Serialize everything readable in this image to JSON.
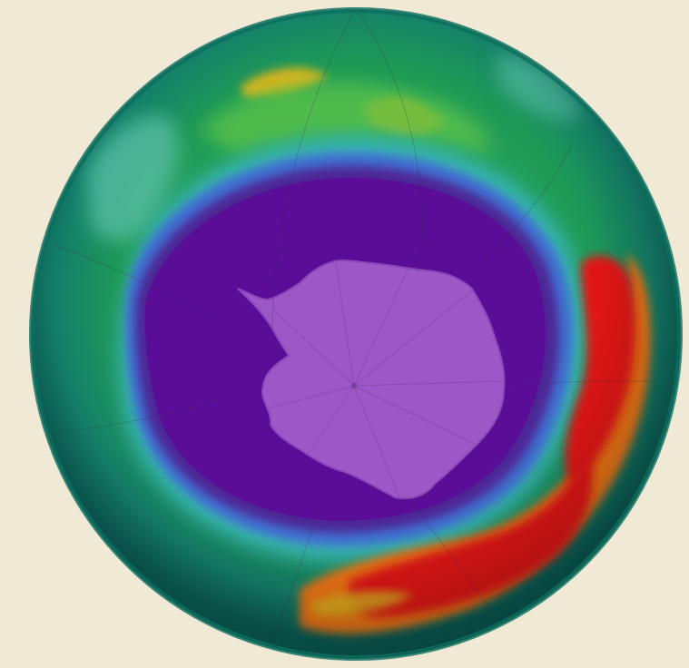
{
  "image": {
    "subject": "ozone-hole-globe",
    "colors": {
      "background": "#efe9d6",
      "rim": "#0d6e5e",
      "outer_green": "#1f9a56",
      "light_green": "#3cb35c",
      "teal": "#2aa38a",
      "cyan": "#39b8b4",
      "blue": "#3f6fd0",
      "violet": "#4d2596",
      "hole": "#5a0d97",
      "continent": "#9d57c6",
      "red": "#e01414",
      "orange": "#ec7416",
      "yellow": "#d6b317",
      "graticule": "#2f2a46"
    }
  }
}
